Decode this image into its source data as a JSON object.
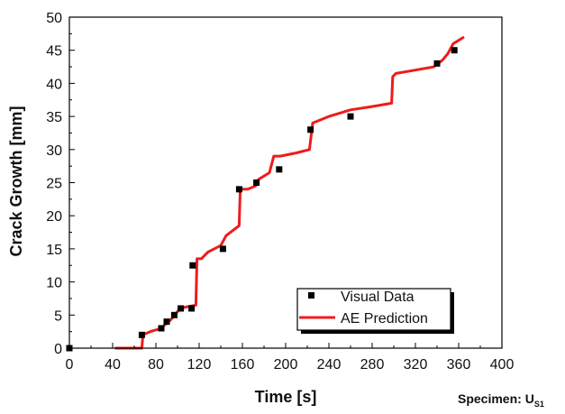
{
  "chart_data": {
    "type": "scatter",
    "title": "",
    "xlabel": "Time [s]",
    "ylabel": "Crack Growth [mm]",
    "xlim": [
      0,
      400
    ],
    "ylim": [
      0,
      50
    ],
    "xticks": [
      0,
      40,
      80,
      120,
      160,
      200,
      240,
      280,
      320,
      360,
      400
    ],
    "yticks": [
      0,
      5,
      10,
      15,
      20,
      25,
      30,
      35,
      40,
      45,
      50
    ],
    "grid": false,
    "legend_position": "bottom-right",
    "annotation": {
      "prefix": "Specimen: U",
      "subscript": "S1"
    },
    "series": [
      {
        "name": "Visual Data",
        "type": "scatter",
        "marker": "square",
        "color": "#000000",
        "points": [
          [
            0,
            0
          ],
          [
            67,
            2
          ],
          [
            85,
            3
          ],
          [
            90,
            4
          ],
          [
            97,
            5
          ],
          [
            103,
            6
          ],
          [
            113,
            6
          ],
          [
            114,
            12.5
          ],
          [
            142,
            15
          ],
          [
            157,
            24
          ],
          [
            173,
            25
          ],
          [
            194,
            27
          ],
          [
            223,
            33
          ],
          [
            260,
            35
          ],
          [
            340,
            43
          ],
          [
            356,
            45
          ]
        ]
      },
      {
        "name": "AE Prediction",
        "type": "line",
        "color": "#ee1c1c",
        "points": [
          [
            42,
            0
          ],
          [
            65,
            0
          ],
          [
            67,
            0
          ],
          [
            68,
            2
          ],
          [
            75,
            2.5
          ],
          [
            85,
            3
          ],
          [
            88,
            3.5
          ],
          [
            92,
            4
          ],
          [
            95,
            4.5
          ],
          [
            97,
            5
          ],
          [
            100,
            5.5
          ],
          [
            102,
            6
          ],
          [
            110,
            6.3
          ],
          [
            117,
            6.5
          ],
          [
            118,
            13.5
          ],
          [
            122,
            13.5
          ],
          [
            128,
            14.5
          ],
          [
            140,
            15.5
          ],
          [
            145,
            17
          ],
          [
            157,
            18.5
          ],
          [
            158,
            24
          ],
          [
            165,
            24
          ],
          [
            172,
            24.5
          ],
          [
            175,
            25.5
          ],
          [
            185,
            26.5
          ],
          [
            189,
            29
          ],
          [
            195,
            29
          ],
          [
            210,
            29.5
          ],
          [
            222,
            30
          ],
          [
            225,
            34
          ],
          [
            240,
            35
          ],
          [
            260,
            36
          ],
          [
            280,
            36.5
          ],
          [
            298,
            37
          ],
          [
            299,
            41
          ],
          [
            302,
            41.5
          ],
          [
            320,
            42
          ],
          [
            337,
            42.5
          ],
          [
            345,
            43.5
          ],
          [
            350,
            44.5
          ],
          [
            355,
            46
          ],
          [
            360,
            46.5
          ],
          [
            365,
            47
          ]
        ]
      }
    ]
  }
}
